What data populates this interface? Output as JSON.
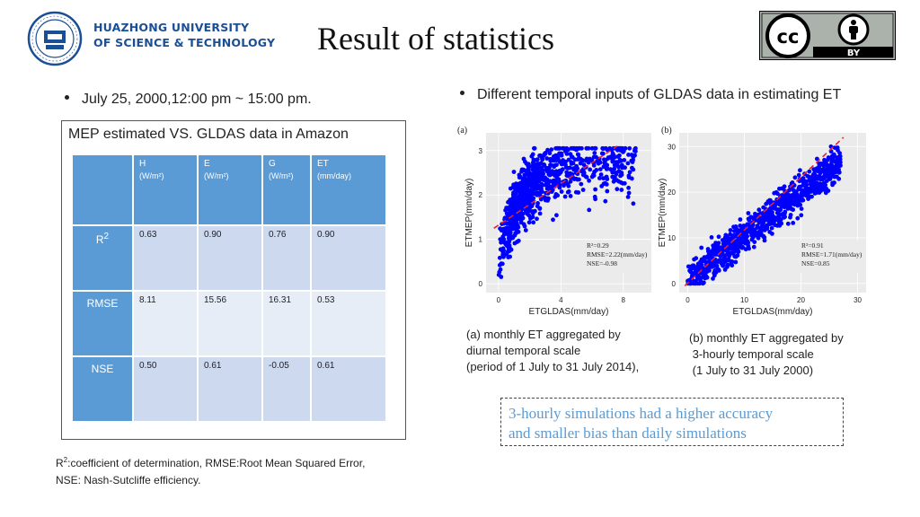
{
  "header": {
    "university_line1": "HUAZHONG UNIVERSITY",
    "university_line2": "OF SCIENCE & TECHNOLOGY",
    "title": "Result of statistics",
    "license_label": "BY"
  },
  "bullets": {
    "left": "July 25, 2000,12:00 pm ~ 15:00 pm.",
    "right": "Different temporal inputs of GLDAS data in estimating ET"
  },
  "table": {
    "caption": "MEP estimated VS. GLDAS data in Amazon",
    "columns": [
      {
        "name": "H",
        "unit": "(W/m²)"
      },
      {
        "name": "E",
        "unit": "(W/m²)"
      },
      {
        "name": "G",
        "unit": "(W/m²)"
      },
      {
        "name": "ET",
        "unit": "(mm/day)"
      }
    ],
    "rows": [
      {
        "label": "R",
        "label_sup": "2",
        "values": [
          "0.63",
          "0.90",
          "0.76",
          "0.90"
        ]
      },
      {
        "label": "RMSE",
        "values": [
          "8.11",
          "15.56",
          "16.31",
          "0.53"
        ]
      },
      {
        "label": "NSE",
        "values": [
          "0.50",
          "0.61",
          "-0.05",
          "0.61"
        ]
      }
    ],
    "header_color": "#5b9bd5"
  },
  "footnote": {
    "line1_sup": "2",
    "line1_prefix": "R",
    "line1_rest": ":coefficient of determination, RMSE:Root Mean Squared Error,",
    "line2": "NSE: Nash-Sutcliffe efficiency."
  },
  "chart_data": [
    {
      "type": "scatter",
      "panel_label": "(a)",
      "xlabel": "ETGLDAS(mm/day)",
      "ylabel": "ETMEP(mm/day)",
      "xticks": [
        0,
        4,
        8
      ],
      "yticks": [
        0,
        1,
        2,
        3
      ],
      "xlim": [
        -0.8,
        9.8
      ],
      "ylim": [
        -0.2,
        3.4
      ],
      "stats": [
        "R²=0.29",
        "RMSE=2.22(mm/day)",
        "NSE=-0.98"
      ],
      "point_color": "#0000ff",
      "fit_line_color": "#e8232a",
      "fit_line": [
        [
          -0.3,
          1.25
        ],
        [
          7.6,
          3.1
        ]
      ]
    },
    {
      "type": "scatter",
      "panel_label": "(b)",
      "xlabel": "ETGLDAS(mm/day)",
      "ylabel": "ETMEP(mm/day)",
      "xticks": [
        0,
        10,
        20,
        30
      ],
      "yticks": [
        0,
        10,
        20,
        30
      ],
      "xlim": [
        -1.5,
        31.5
      ],
      "ylim": [
        -2,
        33
      ],
      "stats": [
        "R²=0.91",
        "RMSE=1.71(mm/day)",
        "NSE=0.85"
      ],
      "point_color": "#0000ff",
      "fit_line_color": "#e8232a",
      "fit_line": [
        [
          -0.5,
          -0.5
        ],
        [
          27.5,
          32
        ]
      ]
    }
  ],
  "captions": {
    "a": [
      "(a) monthly ET aggregated by",
      "diurnal temporal scale",
      "(period of 1 July to 31 July 2014),"
    ],
    "b": [
      "(b) monthly ET aggregated by",
      " 3-hourly temporal scale",
      " (1 July to 31 July 2000)"
    ]
  },
  "conclusion": {
    "line1": "3-hourly simulations had a higher accuracy",
    "line2": "and smaller bias than daily simulations",
    "color": "#5b9bd5"
  }
}
